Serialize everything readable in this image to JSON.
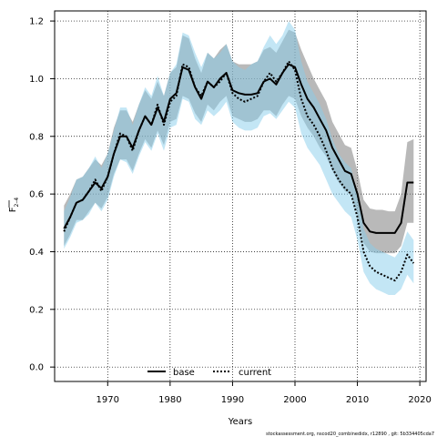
{
  "chart_data": {
    "type": "line",
    "xlabel": "Years",
    "ylabel_main": "F",
    "ylabel_sub": "2–4",
    "xlim": [
      1961.5,
      2021
    ],
    "ylim": [
      -0.05,
      1.235
    ],
    "xticks": [
      1970,
      1980,
      1990,
      2000,
      2010,
      2020
    ],
    "yticks": [
      0.0,
      0.2,
      0.4,
      0.6,
      0.8,
      1.0,
      1.2
    ],
    "grid": true,
    "legend_position": "bottom-center",
    "footnote": "stockassessment.org,  nscod20_combinedidx,  r12890 ,  git: 5b334405cda7",
    "series": [
      {
        "name": "base",
        "color": "#000000",
        "band_color": "#808080",
        "line_style": "solid",
        "x": [
          1963,
          1964,
          1965,
          1966,
          1967,
          1968,
          1969,
          1970,
          1971,
          1972,
          1973,
          1974,
          1975,
          1976,
          1977,
          1978,
          1979,
          1980,
          1981,
          1982,
          1983,
          1984,
          1985,
          1986,
          1987,
          1988,
          1989,
          1990,
          1991,
          1992,
          1993,
          1994,
          1995,
          1996,
          1997,
          1998,
          1999,
          2000,
          2001,
          2002,
          2003,
          2004,
          2005,
          2006,
          2007,
          2008,
          2009,
          2010,
          2011,
          2012,
          2013,
          2014,
          2015,
          2016,
          2017,
          2018,
          2019
        ],
        "values": [
          0.48,
          0.52,
          0.57,
          0.58,
          0.61,
          0.64,
          0.62,
          0.66,
          0.74,
          0.8,
          0.8,
          0.76,
          0.82,
          0.87,
          0.84,
          0.9,
          0.85,
          0.93,
          0.95,
          1.04,
          1.03,
          0.97,
          0.93,
          0.99,
          0.97,
          1.0,
          1.02,
          0.96,
          0.95,
          0.945,
          0.945,
          0.95,
          0.99,
          1.0,
          0.98,
          1.02,
          1.05,
          1.04,
          0.98,
          0.93,
          0.9,
          0.86,
          0.82,
          0.76,
          0.72,
          0.68,
          0.67,
          0.6,
          0.5,
          0.47,
          0.465,
          0.465,
          0.465,
          0.465,
          0.5,
          0.64,
          0.64
        ],
        "lower": [
          0.42,
          0.46,
          0.51,
          0.51,
          0.54,
          0.57,
          0.55,
          0.59,
          0.67,
          0.72,
          0.72,
          0.68,
          0.74,
          0.79,
          0.76,
          0.82,
          0.77,
          0.85,
          0.86,
          0.94,
          0.93,
          0.88,
          0.85,
          0.91,
          0.89,
          0.92,
          0.94,
          0.87,
          0.86,
          0.85,
          0.85,
          0.86,
          0.89,
          0.89,
          0.87,
          0.91,
          0.94,
          0.93,
          0.87,
          0.83,
          0.8,
          0.76,
          0.73,
          0.68,
          0.64,
          0.61,
          0.6,
          0.53,
          0.43,
          0.4,
          0.395,
          0.395,
          0.395,
          0.395,
          0.42,
          0.5,
          0.5
        ],
        "upper": [
          0.56,
          0.6,
          0.65,
          0.66,
          0.69,
          0.72,
          0.7,
          0.74,
          0.83,
          0.89,
          0.89,
          0.85,
          0.91,
          0.96,
          0.93,
          0.99,
          0.94,
          1.02,
          1.04,
          1.15,
          1.14,
          1.07,
          1.02,
          1.09,
          1.07,
          1.1,
          1.12,
          1.06,
          1.05,
          1.05,
          1.05,
          1.06,
          1.1,
          1.11,
          1.09,
          1.13,
          1.17,
          1.16,
          1.1,
          1.05,
          1.0,
          0.96,
          0.92,
          0.85,
          0.81,
          0.77,
          0.76,
          0.68,
          0.58,
          0.55,
          0.545,
          0.545,
          0.54,
          0.54,
          0.6,
          0.78,
          0.79
        ]
      },
      {
        "name": "current",
        "color": "#000000",
        "band_color": "#87CEEB",
        "line_style": "dotted",
        "x": [
          1963,
          1964,
          1965,
          1966,
          1967,
          1968,
          1969,
          1970,
          1971,
          1972,
          1973,
          1974,
          1975,
          1976,
          1977,
          1978,
          1979,
          1980,
          1981,
          1982,
          1983,
          1984,
          1985,
          1986,
          1987,
          1988,
          1989,
          1990,
          1991,
          1992,
          1993,
          1994,
          1995,
          1996,
          1997,
          1998,
          1999,
          2000,
          2001,
          2002,
          2003,
          2004,
          2005,
          2006,
          2007,
          2008,
          2009,
          2010,
          2011,
          2012,
          2013,
          2014,
          2015,
          2016,
          2017,
          2018,
          2019
        ],
        "values": [
          0.47,
          0.52,
          0.57,
          0.58,
          0.61,
          0.65,
          0.61,
          0.66,
          0.74,
          0.81,
          0.8,
          0.75,
          0.82,
          0.87,
          0.84,
          0.91,
          0.84,
          0.92,
          0.94,
          1.05,
          1.04,
          0.97,
          0.94,
          0.99,
          0.97,
          0.99,
          1.02,
          0.95,
          0.93,
          0.92,
          0.93,
          0.94,
          0.99,
          1.02,
          0.99,
          1.02,
          1.06,
          1.03,
          0.93,
          0.87,
          0.84,
          0.8,
          0.75,
          0.69,
          0.65,
          0.62,
          0.6,
          0.52,
          0.4,
          0.35,
          0.33,
          0.32,
          0.31,
          0.3,
          0.33,
          0.39,
          0.36
        ],
        "lower": [
          0.41,
          0.45,
          0.5,
          0.51,
          0.53,
          0.57,
          0.54,
          0.58,
          0.66,
          0.72,
          0.71,
          0.67,
          0.73,
          0.78,
          0.75,
          0.81,
          0.75,
          0.83,
          0.84,
          0.93,
          0.92,
          0.86,
          0.84,
          0.89,
          0.87,
          0.89,
          0.92,
          0.85,
          0.83,
          0.82,
          0.82,
          0.83,
          0.87,
          0.88,
          0.86,
          0.89,
          0.92,
          0.9,
          0.81,
          0.76,
          0.73,
          0.7,
          0.65,
          0.6,
          0.57,
          0.54,
          0.52,
          0.44,
          0.33,
          0.29,
          0.27,
          0.26,
          0.25,
          0.25,
          0.27,
          0.32,
          0.29
        ],
        "upper": [
          0.54,
          0.59,
          0.65,
          0.66,
          0.69,
          0.73,
          0.69,
          0.74,
          0.82,
          0.9,
          0.9,
          0.84,
          0.91,
          0.97,
          0.94,
          1.01,
          0.94,
          1.02,
          1.05,
          1.16,
          1.15,
          1.09,
          1.04,
          1.09,
          1.07,
          1.09,
          1.12,
          1.06,
          1.04,
          1.03,
          1.05,
          1.06,
          1.11,
          1.15,
          1.12,
          1.15,
          1.2,
          1.17,
          1.06,
          0.99,
          0.95,
          0.91,
          0.86,
          0.79,
          0.74,
          0.71,
          0.69,
          0.6,
          0.48,
          0.43,
          0.41,
          0.4,
          0.39,
          0.38,
          0.41,
          0.47,
          0.44
        ]
      }
    ]
  }
}
